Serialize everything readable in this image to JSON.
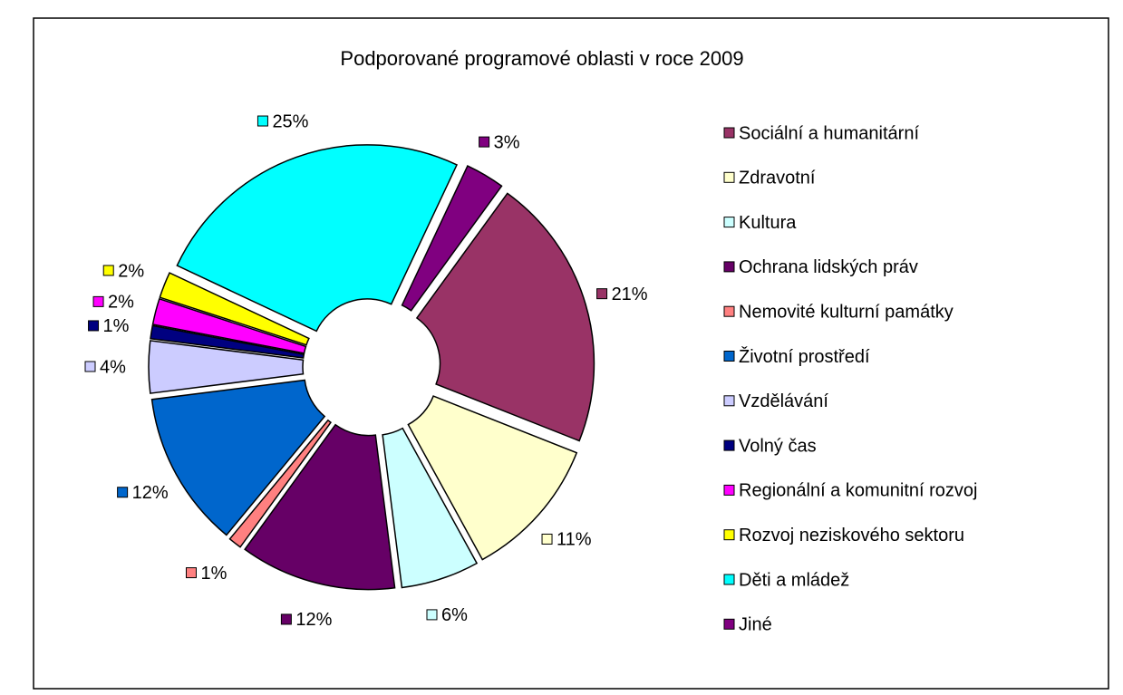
{
  "chart_data": {
    "type": "pie",
    "title": "Podporované programové oblasti v roce 2009",
    "categories": [
      "Sociální a humanitární",
      "Zdravotní",
      "Kultura",
      "Ochrana lidských práv",
      "Nemovité kulturní památky",
      "Životní prostředí",
      "Vzdělávání",
      "Volný čas",
      "Regionální a komunitní rozvoj",
      "Rozvoj neziskového sektoru",
      "Děti a mládež",
      "Jiné"
    ],
    "values": [
      21,
      11,
      6,
      12,
      1,
      12,
      4,
      1,
      2,
      2,
      25,
      3
    ],
    "value_labels": [
      "21%",
      "11%",
      "6%",
      "12%",
      "1%",
      "12%",
      "4%",
      "1%",
      "2%",
      "2%",
      "25%",
      "3%"
    ],
    "colors": [
      "#993366",
      "#FFFFCC",
      "#CCFFFF",
      "#660066",
      "#FF8080",
      "#0066CC",
      "#CCCCFF",
      "#000080",
      "#FF00FF",
      "#FFFF00",
      "#00FFFF",
      "#800080"
    ],
    "legend": "right"
  }
}
